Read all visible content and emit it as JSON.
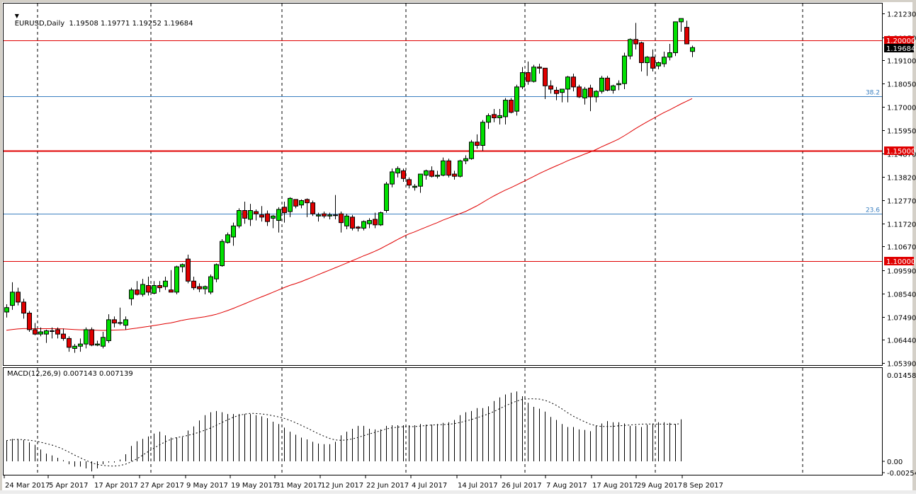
{
  "header": {
    "symbol": "EURUSD",
    "timeframe": "Daily",
    "title": "EURUSD,Daily",
    "open": "1.19508",
    "high": "1.19771",
    "low": "1.19252",
    "close": "1.19684",
    "ohlc_text": "EURUSD,Daily  1.19508 1.19771 1.19252 1.19684"
  },
  "macd_header": {
    "label": "MACD(12,26,9) 0.007143 0.007139"
  },
  "colors": {
    "bull": "#00e000",
    "bear": "#e00000",
    "wick": "#000000",
    "ma": "#e00000",
    "fib": "#3a7fc0",
    "level": "#e00000",
    "current_price_bg": "#000000"
  },
  "chart_data": [
    {
      "type": "candlestick",
      "title": "EURUSD,Daily",
      "price_axis": {
        "ticks": [
          "1.21230",
          "1.20150",
          "1.19100",
          "1.18050",
          "1.17000",
          "1.15950",
          "1.14870",
          "1.13820",
          "1.12770",
          "1.11720",
          "1.10670",
          "1.09590",
          "1.08540",
          "1.07490",
          "1.06440",
          "1.05390"
        ],
        "range": [
          1.0539,
          1.2123
        ]
      },
      "x_axis": {
        "labels": [
          "24 Mar 2017",
          "5 Apr 2017",
          "17 Apr 2017",
          "27 Apr 2017",
          "9 May 2017",
          "19 May 2017",
          "31 May 2017",
          "12 Jun 2017",
          "22 Jun 2017",
          "4 Jul 2017",
          "14 Jul 2017",
          "26 Jul 2017",
          "7 Aug 2017",
          "17 Aug 2017",
          "29 Aug 2017",
          "8 Sep 2017"
        ]
      },
      "horizontal_levels": [
        {
          "price": 1.2,
          "label": "1.20000",
          "color": "#e00000",
          "width": 1
        },
        {
          "price": 1.15,
          "label": "1.15000",
          "color": "#e00000",
          "width": 2
        },
        {
          "price": 1.1,
          "label": "1.10000",
          "color": "#e00000",
          "width": 1
        }
      ],
      "fib_levels": [
        {
          "price": 1.1748,
          "label": "38.2"
        },
        {
          "price": 1.1215,
          "label": "23.6"
        }
      ],
      "current_price": "1.19684",
      "moving_average": {
        "name": "MA",
        "color": "#e00000"
      },
      "candles": [
        [
          1.077,
          1.0805,
          1.0745,
          1.079
        ],
        [
          1.08,
          1.0905,
          1.078,
          1.086
        ],
        [
          1.086,
          1.088,
          1.08,
          1.0815
        ],
        [
          1.0815,
          1.083,
          1.074,
          1.0765
        ],
        [
          1.0765,
          1.0775,
          1.068,
          1.069
        ],
        [
          1.069,
          1.072,
          1.0665,
          1.067
        ],
        [
          1.067,
          1.07,
          1.066,
          1.068
        ],
        [
          1.067,
          1.069,
          1.063,
          1.0685
        ],
        [
          1.0685,
          1.07,
          1.065,
          1.0685
        ],
        [
          1.069,
          1.07,
          1.065,
          1.067
        ],
        [
          1.067,
          1.0695,
          1.064,
          1.065
        ],
        [
          1.065,
          1.066,
          1.059,
          1.061
        ],
        [
          1.0605,
          1.0625,
          1.0585,
          1.0615
        ],
        [
          1.0615,
          1.065,
          1.059,
          1.0625
        ],
        [
          1.0625,
          1.07,
          1.0605,
          1.069
        ],
        [
          1.069,
          1.07,
          1.0615,
          1.062
        ],
        [
          1.062,
          1.064,
          1.0615,
          1.0625
        ],
        [
          1.0615,
          1.068,
          1.0605,
          1.0655
        ],
        [
          1.064,
          1.076,
          1.063,
          1.0735
        ],
        [
          1.0735,
          1.075,
          1.07,
          1.072
        ],
        [
          1.072,
          1.079,
          1.071,
          1.0722
        ],
        [
          1.071,
          1.075,
          1.069,
          1.0735
        ],
        [
          1.083,
          1.088,
          1.08,
          1.087
        ],
        [
          1.087,
          1.091,
          1.0845,
          1.085
        ],
        [
          1.085,
          1.092,
          1.084,
          1.0895
        ],
        [
          1.089,
          1.093,
          1.0845,
          1.086
        ],
        [
          1.0855,
          1.091,
          1.085,
          1.089
        ],
        [
          1.089,
          1.091,
          1.086,
          1.088
        ],
        [
          1.0885,
          1.093,
          1.087,
          1.091
        ],
        [
          1.087,
          1.096,
          1.086,
          1.086
        ],
        [
          1.086,
          1.098,
          1.085,
          1.0975
        ],
        [
          1.0975,
          1.099,
          1.095,
          1.0985
        ],
        [
          1.101,
          1.103,
          1.09,
          1.091
        ],
        [
          1.091,
          1.093,
          1.087,
          1.088
        ],
        [
          1.0885,
          1.09,
          1.086,
          1.0875
        ],
        [
          1.0875,
          1.089,
          1.085,
          1.0885
        ],
        [
          1.086,
          1.094,
          1.085,
          1.093
        ],
        [
          1.092,
          1.099,
          1.0905,
          1.0985
        ],
        [
          1.098,
          1.11,
          1.0975,
          1.109
        ],
        [
          1.1085,
          1.113,
          1.108,
          1.112
        ],
        [
          1.111,
          1.1175,
          1.107,
          1.116
        ],
        [
          1.116,
          1.124,
          1.115,
          1.123
        ],
        [
          1.123,
          1.127,
          1.117,
          1.1195
        ],
        [
          1.119,
          1.126,
          1.116,
          1.123
        ],
        [
          1.1225,
          1.1235,
          1.1185,
          1.1215
        ],
        [
          1.121,
          1.125,
          1.118,
          1.12
        ],
        [
          1.1215,
          1.123,
          1.116,
          1.118
        ],
        [
          1.1195,
          1.121,
          1.115,
          1.1205
        ],
        [
          1.1185,
          1.1245,
          1.113,
          1.1235
        ],
        [
          1.1245,
          1.127,
          1.1175,
          1.122
        ],
        [
          1.1225,
          1.129,
          1.12,
          1.1285
        ],
        [
          1.128,
          1.128,
          1.124,
          1.125
        ],
        [
          1.1255,
          1.128,
          1.124,
          1.1275
        ],
        [
          1.128,
          1.1285,
          1.12,
          1.1265
        ],
        [
          1.1265,
          1.1275,
          1.1205,
          1.1215
        ],
        [
          1.1205,
          1.122,
          1.118,
          1.121
        ],
        [
          1.1215,
          1.1225,
          1.1195,
          1.1205
        ],
        [
          1.1205,
          1.122,
          1.119,
          1.121
        ],
        [
          1.121,
          1.13,
          1.119,
          1.121
        ],
        [
          1.1215,
          1.1225,
          1.113,
          1.1175
        ],
        [
          1.116,
          1.1215,
          1.1145,
          1.1205
        ],
        [
          1.12,
          1.121,
          1.114,
          1.115
        ],
        [
          1.1155,
          1.116,
          1.1135,
          1.115
        ],
        [
          1.115,
          1.1185,
          1.114,
          1.118
        ],
        [
          1.117,
          1.1195,
          1.115,
          1.1185
        ],
        [
          1.119,
          1.122,
          1.115,
          1.1165
        ],
        [
          1.1165,
          1.1225,
          1.116,
          1.122
        ],
        [
          1.123,
          1.136,
          1.122,
          1.135
        ],
        [
          1.135,
          1.142,
          1.1335,
          1.1405
        ],
        [
          1.14,
          1.143,
          1.138,
          1.142
        ],
        [
          1.141,
          1.142,
          1.136,
          1.1375
        ],
        [
          1.137,
          1.138,
          1.133,
          1.1345
        ],
        [
          1.1335,
          1.135,
          1.132,
          1.134
        ],
        [
          1.134,
          1.1365,
          1.131,
          1.1395
        ],
        [
          1.139,
          1.1415,
          1.137,
          1.141
        ],
        [
          1.141,
          1.143,
          1.138,
          1.1385
        ],
        [
          1.1385,
          1.141,
          1.1375,
          1.139
        ],
        [
          1.139,
          1.147,
          1.1385,
          1.1455
        ],
        [
          1.1455,
          1.1465,
          1.138,
          1.139
        ],
        [
          1.1395,
          1.141,
          1.137,
          1.1385
        ],
        [
          1.1385,
          1.146,
          1.138,
          1.1455
        ],
        [
          1.1455,
          1.148,
          1.144,
          1.1465
        ],
        [
          1.1465,
          1.155,
          1.146,
          1.154
        ],
        [
          1.154,
          1.1575,
          1.151,
          1.1525
        ],
        [
          1.1525,
          1.164,
          1.15,
          1.163
        ],
        [
          1.163,
          1.167,
          1.16,
          1.166
        ],
        [
          1.1665,
          1.169,
          1.163,
          1.165
        ],
        [
          1.165,
          1.169,
          1.162,
          1.166
        ],
        [
          1.1655,
          1.174,
          1.162,
          1.173
        ],
        [
          1.173,
          1.174,
          1.167,
          1.1675
        ],
        [
          1.168,
          1.18,
          1.166,
          1.179
        ],
        [
          1.179,
          1.188,
          1.178,
          1.1855
        ],
        [
          1.1855,
          1.1905,
          1.18,
          1.1815
        ],
        [
          1.1815,
          1.189,
          1.181,
          1.188
        ],
        [
          1.188,
          1.1895,
          1.185,
          1.1875
        ],
        [
          1.1875,
          1.1875,
          1.1735,
          1.1795
        ],
        [
          1.1795,
          1.182,
          1.176,
          1.178
        ],
        [
          1.1775,
          1.179,
          1.173,
          1.176
        ],
        [
          1.1765,
          1.178,
          1.172,
          1.178
        ],
        [
          1.178,
          1.184,
          1.172,
          1.1835
        ],
        [
          1.1835,
          1.185,
          1.177,
          1.179
        ],
        [
          1.179,
          1.18,
          1.174,
          1.1745
        ],
        [
          1.174,
          1.179,
          1.171,
          1.178
        ],
        [
          1.1785,
          1.18,
          1.168,
          1.1745
        ],
        [
          1.1745,
          1.1775,
          1.172,
          1.177
        ],
        [
          1.177,
          1.184,
          1.176,
          1.183
        ],
        [
          1.183,
          1.184,
          1.177,
          1.1775
        ],
        [
          1.1775,
          1.18,
          1.176,
          1.1795
        ],
        [
          1.18,
          1.182,
          1.1775,
          1.1805
        ],
        [
          1.1805,
          1.1945,
          1.178,
          1.193
        ],
        [
          1.193,
          1.201,
          1.1915,
          1.2005
        ],
        [
          1.2005,
          1.208,
          1.196,
          1.1985
        ],
        [
          1.199,
          1.1995,
          1.186,
          1.19
        ],
        [
          1.19,
          1.193,
          1.184,
          1.1925
        ],
        [
          1.1925,
          1.196,
          1.186,
          1.1875
        ],
        [
          1.1885,
          1.1905,
          1.187,
          1.19
        ],
        [
          1.1895,
          1.195,
          1.188,
          1.1925
        ],
        [
          1.1925,
          1.1985,
          1.191,
          1.1945
        ],
        [
          1.1945,
          1.2015,
          1.193,
          1.2085
        ],
        [
          1.2085,
          1.2095,
          1.204,
          1.21
        ],
        [
          1.206,
          1.209,
          1.204,
          1.1985
        ],
        [
          1.19508,
          1.19771,
          1.19252,
          1.19684
        ]
      ]
    },
    {
      "type": "bar",
      "title": "MACD(12,26,9) 0.007143 0.007139",
      "ylim": [
        -0.002543,
        0.014587
      ],
      "ticks": [
        "0.014587",
        "0.00",
        "-0.002543"
      ],
      "macd_value": 0.007143,
      "signal_value": 0.007139,
      "histogram": [
        0.0035,
        0.0038,
        0.0038,
        0.0036,
        0.0032,
        0.0028,
        0.002,
        0.0013,
        0.001,
        0.0006,
        0.0002,
        -0.0005,
        -0.0009,
        -0.0009,
        -0.0012,
        -0.0017,
        -0.0012,
        -0.0005,
        -0.0002,
        -0.0002,
        0.0003,
        0.0012,
        0.0026,
        0.0034,
        0.0038,
        0.0042,
        0.0047,
        0.005,
        0.0044,
        0.004,
        0.004,
        0.0041,
        0.0052,
        0.0059,
        0.0069,
        0.0078,
        0.0083,
        0.0085,
        0.0083,
        0.008,
        0.008,
        0.008,
        0.008,
        0.008,
        0.0078,
        0.0076,
        0.0073,
        0.0067,
        0.0063,
        0.0057,
        0.005,
        0.0045,
        0.004,
        0.0037,
        0.0033,
        0.003,
        0.0029,
        0.0029,
        0.0033,
        0.0044,
        0.005,
        0.0055,
        0.006,
        0.006,
        0.0055,
        0.0054,
        0.0054,
        0.006,
        0.0061,
        0.0061,
        0.0061,
        0.0061,
        0.0061,
        0.0063,
        0.0062,
        0.0062,
        0.0063,
        0.0065,
        0.0066,
        0.007,
        0.0078,
        0.0083,
        0.0085,
        0.009,
        0.009,
        0.0093,
        0.0102,
        0.0108,
        0.0113,
        0.0116,
        0.0118,
        0.011,
        0.0099,
        0.0092,
        0.0089,
        0.0084,
        0.0075,
        0.007,
        0.0063,
        0.0058,
        0.0058,
        0.0054,
        0.0053,
        0.0051,
        0.006,
        0.0064,
        0.0068,
        0.0066,
        0.0066,
        0.0064,
        0.006,
        0.006,
        0.0058,
        0.0062,
        0.0064,
        0.0066,
        0.0066,
        0.0065,
        0.0063,
        0.0071
      ]
    }
  ]
}
